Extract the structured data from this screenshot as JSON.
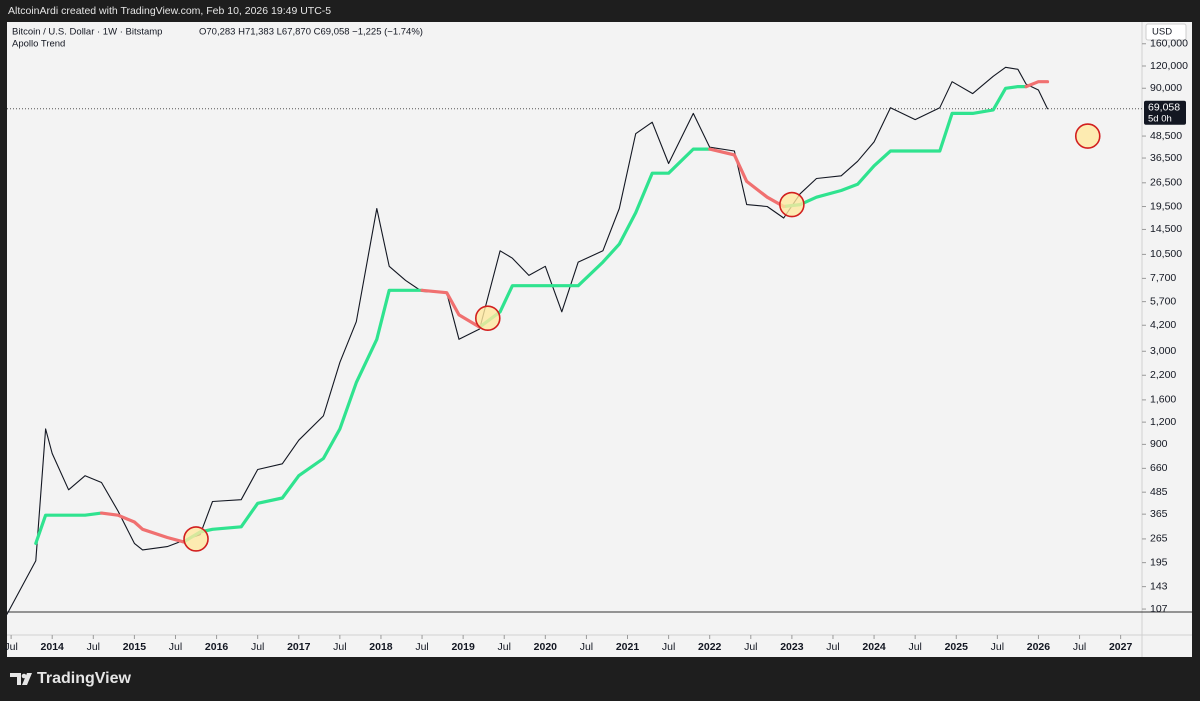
{
  "header": {
    "credit": "AltcoinArdi created with TradingView.com, Feb 10, 2026 19:49 UTC-5"
  },
  "footer": {
    "brand": "TradingView"
  },
  "chart_data": {
    "type": "line",
    "title": "Bitcoin / U.S. Dollar · 1W · Bitstamp",
    "ohlc": "O70,283 H71,383 L67,870 C69,058 −1,225 (−1.74%)",
    "indicator": "Apollo Trend",
    "currency": "USD",
    "log_scale": true,
    "x": [
      2013.45,
      2013.8,
      2013.92,
      2014.0,
      2014.2,
      2014.4,
      2014.6,
      2014.8,
      2015.0,
      2015.1,
      2015.4,
      2015.6,
      2015.8,
      2015.95,
      2016.3,
      2016.5,
      2016.8,
      2017.0,
      2017.3,
      2017.5,
      2017.7,
      2017.95,
      2018.1,
      2018.3,
      2018.5,
      2018.8,
      2018.95,
      2019.2,
      2019.45,
      2019.6,
      2019.8,
      2020.0,
      2020.2,
      2020.4,
      2020.7,
      2020.9,
      2021.1,
      2021.3,
      2021.5,
      2021.8,
      2022.0,
      2022.3,
      2022.45,
      2022.7,
      2022.9,
      2023.1,
      2023.3,
      2023.6,
      2023.8,
      2024.0,
      2024.2,
      2024.5,
      2024.8,
      2024.95,
      2025.2,
      2025.45,
      2025.6,
      2025.75,
      2025.85,
      2026.0,
      2026.11
    ],
    "series": [
      {
        "color": "#131722",
        "values": [
          100,
          200,
          1100,
          800,
          500,
          600,
          550,
          380,
          250,
          230,
          240,
          260,
          280,
          430,
          440,
          650,
          700,
          950,
          1300,
          2600,
          4400,
          19000,
          9000,
          7500,
          6500,
          6400,
          3500,
          4000,
          11000,
          10000,
          8000,
          9000,
          5000,
          9500,
          11000,
          19000,
          50000,
          58000,
          34000,
          65000,
          42000,
          40000,
          20000,
          19500,
          16800,
          23000,
          28000,
          29000,
          35000,
          45000,
          70000,
          60000,
          70000,
          98000,
          84000,
          105000,
          118000,
          115000,
          95000,
          88000,
          69058
        ]
      },
      {
        "name": "Apollo Trend",
        "color": "#2fe38f",
        "values": [
          null,
          250,
          360,
          360,
          360,
          360,
          370,
          null,
          null,
          null,
          null,
          255,
          290,
          300,
          310,
          420,
          450,
          600,
          750,
          1100,
          2000,
          3500,
          6600,
          6600,
          6600,
          null,
          null,
          4100,
          5000,
          7000,
          7000,
          7000,
          7000,
          7000,
          9500,
          12000,
          18000,
          30000,
          30000,
          41000,
          41000,
          null,
          null,
          null,
          19500,
          20000,
          22000,
          24000,
          26000,
          33000,
          40000,
          40000,
          40000,
          65000,
          65000,
          68000,
          90000,
          92000,
          92000,
          null,
          null
        ]
      },
      {
        "color": "#f07070",
        "values": [
          null,
          null,
          null,
          null,
          null,
          null,
          370,
          360,
          330,
          300,
          270,
          255,
          null,
          null,
          null,
          null,
          null,
          null,
          null,
          null,
          null,
          null,
          null,
          null,
          6600,
          6400,
          4800,
          4100,
          null,
          null,
          null,
          null,
          null,
          null,
          null,
          null,
          null,
          null,
          null,
          null,
          41000,
          38000,
          27000,
          22000,
          19500,
          null,
          null,
          null,
          null,
          null,
          null,
          null,
          null,
          null,
          null,
          null,
          null,
          null,
          92000,
          98000,
          98000
        ]
      }
    ],
    "signals": [
      {
        "x": 2015.75,
        "y": 265
      },
      {
        "x": 2019.3,
        "y": 4600
      },
      {
        "x": 2023.0,
        "y": 20000
      },
      {
        "x": 2026.6,
        "y": 48500
      }
    ],
    "last_price": {
      "value": 69058,
      "label": "69,058"
    },
    "countdown": "5d 0h",
    "xlim": [
      2013.45,
      2027.26
    ],
    "xticks": [
      {
        "value": 2013.5,
        "label": "Jul"
      },
      {
        "value": 2014,
        "label": "2014"
      },
      {
        "value": 2014.5,
        "label": "Jul"
      },
      {
        "value": 2015,
        "label": "2015"
      },
      {
        "value": 2015.5,
        "label": "Jul"
      },
      {
        "value": 2016,
        "label": "2016"
      },
      {
        "value": 2016.5,
        "label": "Jul"
      },
      {
        "value": 2017,
        "label": "2017"
      },
      {
        "value": 2017.5,
        "label": "Jul"
      },
      {
        "value": 2018,
        "label": "2018"
      },
      {
        "value": 2018.5,
        "label": "Jul"
      },
      {
        "value": 2019,
        "label": "2019"
      },
      {
        "value": 2019.5,
        "label": "Jul"
      },
      {
        "value": 2020,
        "label": "2020"
      },
      {
        "value": 2020.5,
        "label": "Jul"
      },
      {
        "value": 2021,
        "label": "2021"
      },
      {
        "value": 2021.5,
        "label": "Jul"
      },
      {
        "value": 2022,
        "label": "2022"
      },
      {
        "value": 2022.5,
        "label": "Jul"
      },
      {
        "value": 2023,
        "label": "2023"
      },
      {
        "value": 2023.5,
        "label": "Jul"
      },
      {
        "value": 2024,
        "label": "2024"
      },
      {
        "value": 2024.5,
        "label": "Jul"
      },
      {
        "value": 2025,
        "label": "2025"
      },
      {
        "value": 2025.5,
        "label": "Jul"
      },
      {
        "value": 2026,
        "label": "2026"
      },
      {
        "value": 2026.5,
        "label": "Jul"
      },
      {
        "value": 2027,
        "label": "2027"
      }
    ],
    "ylim": [
      103,
      212000
    ],
    "yticks": [
      107,
      143,
      195,
      265,
      365,
      485,
      660,
      900,
      {
        "value": 1200,
        "label": "1,200"
      },
      {
        "value": 1600,
        "label": "1,600"
      },
      {
        "value": 2200,
        "label": "2,200"
      },
      {
        "value": 3000,
        "label": "3,000"
      },
      {
        "value": 4200,
        "label": "4,200"
      },
      {
        "value": 5700,
        "label": "5,700"
      },
      {
        "value": 7700,
        "label": "7,700"
      },
      {
        "value": 10500,
        "label": "10,500"
      },
      {
        "value": 14500,
        "label": "14,500"
      },
      {
        "value": 19500,
        "label": "19,500"
      },
      {
        "value": 26500,
        "label": "26,500"
      },
      {
        "value": 36500,
        "label": "36,500"
      },
      {
        "value": 48500,
        "label": "48,500"
      },
      {
        "value": 90000,
        "label": "90,000"
      },
      {
        "value": 120000,
        "label": "120,000"
      },
      {
        "value": 160000,
        "label": "160,000"
      }
    ]
  }
}
